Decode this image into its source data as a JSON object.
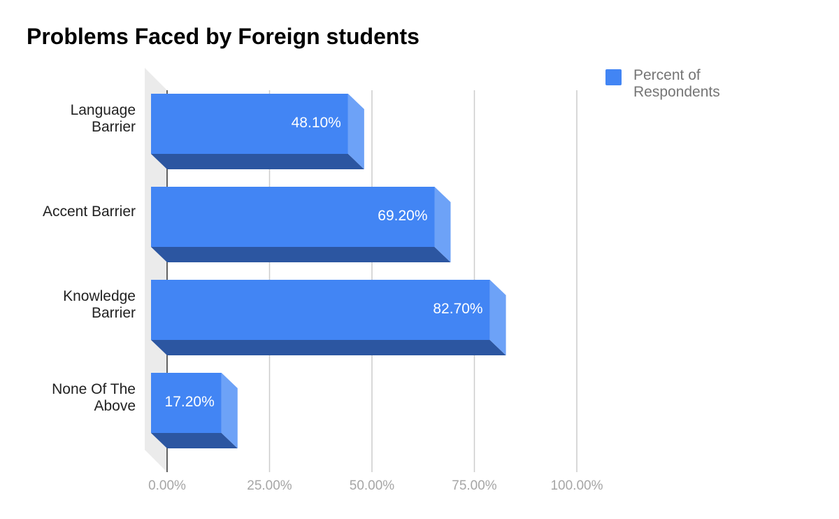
{
  "chart_data": {
    "type": "bar",
    "orientation": "horizontal",
    "style": "3d",
    "title": "Problems Faced by Foreign students",
    "categories": [
      "Language\nBarrier",
      "Accent Barrier",
      "Knowledge\nBarrier",
      "None Of The\nAbove"
    ],
    "series": [
      {
        "name": "Percent of Respondents",
        "values": [
          48.1,
          69.2,
          82.7,
          17.2
        ],
        "labels": [
          "48.10%",
          "69.20%",
          "82.70%",
          "17.20%"
        ]
      }
    ],
    "xticks": [
      "0.00%",
      "25.00%",
      "50.00%",
      "75.00%",
      "100.00%"
    ],
    "xlim": [
      0,
      100
    ],
    "xlabel": "",
    "ylabel": "",
    "grid": true,
    "legend_position": "top-right",
    "colors": {
      "bar_front": "#4285f4",
      "bar_bottom": "#2c56a1",
      "bar_side": "#6da2f7",
      "grid": "#cccccc",
      "wall": "#ebebeb",
      "axis": "#333333",
      "tick_label": "#a6a6a6",
      "category_label": "#222222",
      "data_label": "#ffffff",
      "legend_text": "#757575"
    }
  }
}
